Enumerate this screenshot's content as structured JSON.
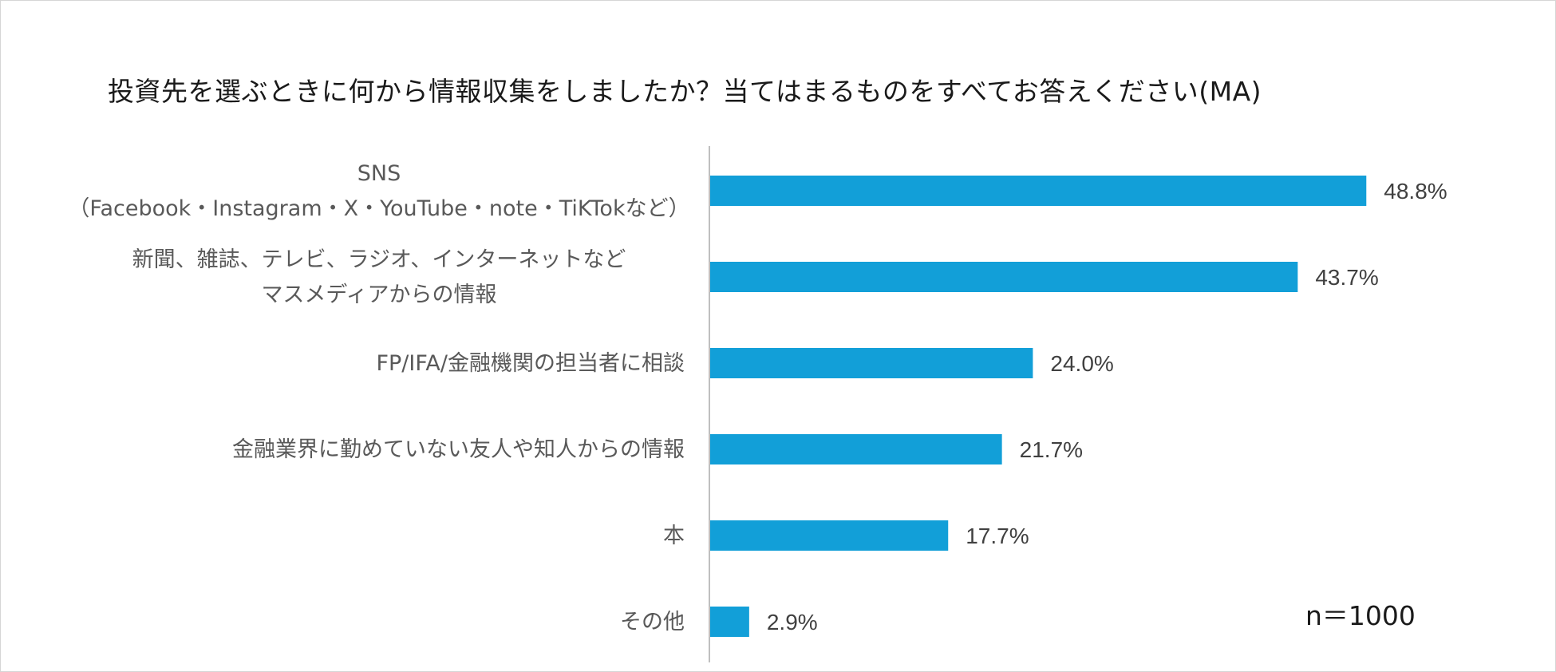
{
  "chart_data": {
    "type": "bar",
    "orientation": "horizontal",
    "title": "投資先を選ぶときに何から情報収集をしましたか？当てはまるものをすべてお答えください(MA)",
    "categories": [
      [
        "SNS",
        "（Facebook・Instagram・X・YouTube・note・TiKTokなど）"
      ],
      [
        "新聞、雑誌、テレビ、ラジオ、インターネットなど",
        "マスメディアからの情報"
      ],
      [
        "FP/IFA/金融機関の担当者に相談"
      ],
      [
        "金融業界に勤めていない友人や知人からの情報"
      ],
      [
        "本"
      ],
      [
        "その他"
      ]
    ],
    "values": [
      48.8,
      43.7,
      24.0,
      21.7,
      17.7,
      2.9
    ],
    "value_labels": [
      "48.8%",
      "43.7%",
      "24.0%",
      "21.7%",
      "17.7%",
      "2.9%"
    ],
    "unit": "%",
    "xlim": [
      0,
      60
    ],
    "bar_color": "#129fd8",
    "axis_color": "#bfbfbf",
    "grid": false,
    "legend": "none",
    "annotation": "n＝1000"
  }
}
